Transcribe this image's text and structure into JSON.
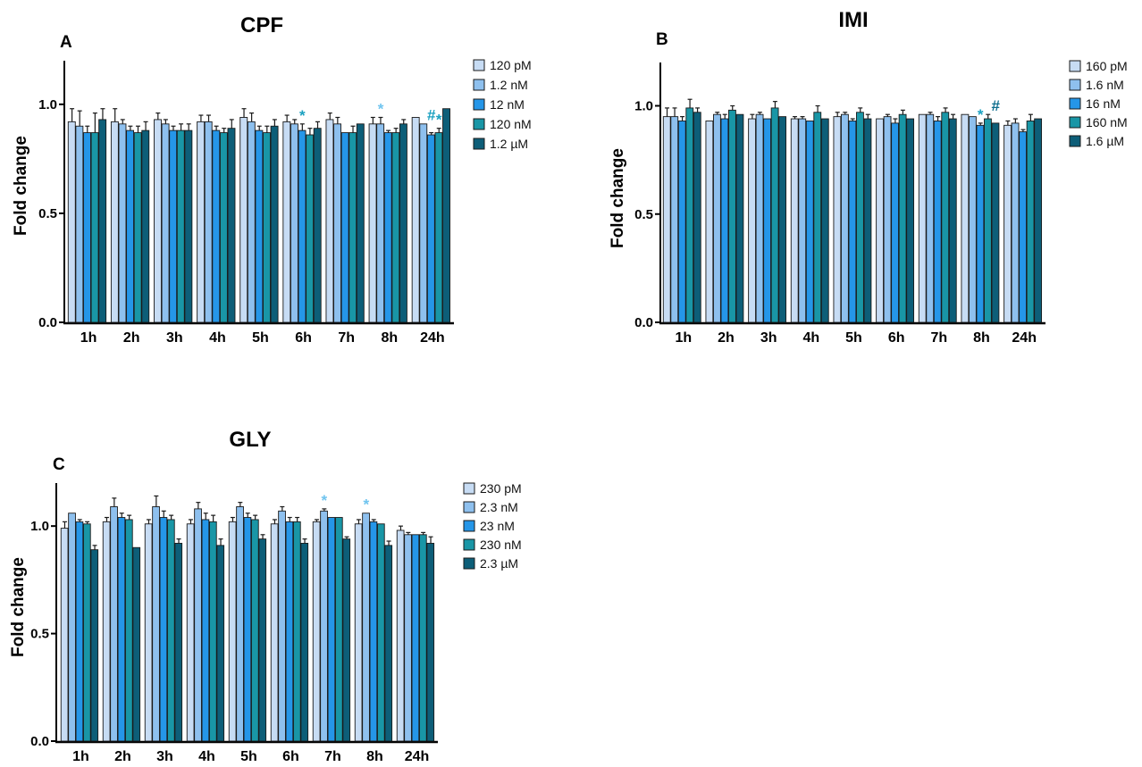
{
  "chart_data": [
    {
      "id": "A",
      "type": "bar",
      "title": "CPF",
      "panel_label": "A",
      "ylabel": "Fold change",
      "xlabel": "",
      "ylim": [
        0,
        1.2
      ],
      "yticks": [
        "0.0",
        "0.5",
        "1.0"
      ],
      "categories": [
        "1h",
        "2h",
        "3h",
        "4h",
        "5h",
        "6h",
        "7h",
        "8h",
        "24h"
      ],
      "series": [
        {
          "name": "120 pM",
          "values": [
            0.92,
            0.92,
            0.93,
            0.92,
            0.94,
            0.92,
            0.93,
            0.91,
            0.94
          ],
          "errors": [
            0.06,
            0.06,
            0.03,
            0.03,
            0.04,
            0.03,
            0.03,
            0.03,
            0.0
          ]
        },
        {
          "name": "1.2 nM",
          "values": [
            0.9,
            0.91,
            0.91,
            0.92,
            0.92,
            0.91,
            0.91,
            0.91,
            0.91
          ],
          "errors": [
            0.07,
            0.02,
            0.02,
            0.03,
            0.04,
            0.02,
            0.03,
            0.03,
            0.0
          ]
        },
        {
          "name": "12 nM",
          "values": [
            0.87,
            0.88,
            0.88,
            0.88,
            0.88,
            0.88,
            0.87,
            0.87,
            0.86
          ],
          "errors": [
            0.03,
            0.02,
            0.02,
            0.02,
            0.02,
            0.03,
            0.0,
            0.01,
            0.01
          ]
        },
        {
          "name": "120 nM",
          "values": [
            0.87,
            0.87,
            0.88,
            0.87,
            0.87,
            0.86,
            0.87,
            0.87,
            0.87
          ],
          "errors": [
            0.09,
            0.03,
            0.03,
            0.02,
            0.03,
            0.03,
            0.03,
            0.02,
            0.02
          ]
        },
        {
          "name": "1.2 µM",
          "values": [
            0.93,
            0.88,
            0.88,
            0.89,
            0.9,
            0.89,
            0.91,
            0.91,
            0.98
          ],
          "errors": [
            0.05,
            0.04,
            0.03,
            0.04,
            0.03,
            0.03,
            0.0,
            0.02,
            0.0
          ]
        }
      ],
      "annotations": [
        {
          "text": "*",
          "category": "6h",
          "series": 2
        },
        {
          "text": "*",
          "category": "8h",
          "series": 1
        },
        {
          "text": "#",
          "category": "24h",
          "series": 2
        },
        {
          "text": "*",
          "category": "24h",
          "series": 3
        }
      ]
    },
    {
      "id": "B",
      "type": "bar",
      "title": "IMI",
      "panel_label": "B",
      "ylabel": "Fold change",
      "xlabel": "",
      "ylim": [
        0,
        1.2
      ],
      "yticks": [
        "0.0",
        "0.5",
        "1.0"
      ],
      "categories": [
        "1h",
        "2h",
        "3h",
        "4h",
        "5h",
        "6h",
        "7h",
        "8h",
        "24h"
      ],
      "series": [
        {
          "name": "160 pM",
          "values": [
            0.95,
            0.93,
            0.94,
            0.94,
            0.95,
            0.94,
            0.96,
            0.96,
            0.91
          ],
          "errors": [
            0.04,
            0.0,
            0.02,
            0.01,
            0.02,
            0.0,
            0.0,
            0.0,
            0.02
          ]
        },
        {
          "name": "1.6 nM",
          "values": [
            0.95,
            0.96,
            0.96,
            0.94,
            0.96,
            0.95,
            0.96,
            0.95,
            0.92
          ],
          "errors": [
            0.04,
            0.01,
            0.01,
            0.01,
            0.01,
            0.01,
            0.01,
            0.0,
            0.02
          ]
        },
        {
          "name": "16 nM",
          "values": [
            0.93,
            0.94,
            0.94,
            0.93,
            0.93,
            0.92,
            0.93,
            0.91,
            0.88
          ],
          "errors": [
            0.02,
            0.02,
            0.0,
            0.0,
            0.01,
            0.02,
            0.02,
            0.01,
            0.01
          ]
        },
        {
          "name": "160 nM",
          "values": [
            0.99,
            0.98,
            0.99,
            0.97,
            0.97,
            0.96,
            0.97,
            0.94,
            0.93
          ],
          "errors": [
            0.04,
            0.02,
            0.03,
            0.03,
            0.02,
            0.02,
            0.02,
            0.02,
            0.03
          ]
        },
        {
          "name": "1.6 µM",
          "values": [
            0.97,
            0.96,
            0.95,
            0.94,
            0.94,
            0.94,
            0.94,
            0.92,
            0.94
          ],
          "errors": [
            0.02,
            0.0,
            0.0,
            0.0,
            0.02,
            0.0,
            0.02,
            0.0,
            0.0
          ]
        }
      ],
      "annotations": [
        {
          "text": "*",
          "category": "8h",
          "series": 2
        },
        {
          "text": "#",
          "category": "8h",
          "series": 4
        }
      ]
    },
    {
      "id": "C",
      "type": "bar",
      "title": "GLY",
      "panel_label": "C",
      "ylabel": "Fold change",
      "xlabel": "",
      "ylim": [
        0,
        1.2
      ],
      "yticks": [
        "0.0",
        "0.5",
        "1.0"
      ],
      "categories": [
        "1h",
        "2h",
        "3h",
        "4h",
        "5h",
        "6h",
        "7h",
        "8h",
        "24h"
      ],
      "series": [
        {
          "name": "230 pM",
          "values": [
            0.99,
            1.02,
            1.01,
            1.01,
            1.02,
            1.01,
            1.02,
            1.01,
            0.98
          ],
          "errors": [
            0.03,
            0.02,
            0.02,
            0.02,
            0.02,
            0.02,
            0.01,
            0.02,
            0.02
          ]
        },
        {
          "name": "2.3 nM",
          "values": [
            1.06,
            1.09,
            1.09,
            1.08,
            1.09,
            1.07,
            1.07,
            1.06,
            0.96
          ],
          "errors": [
            0.0,
            0.04,
            0.05,
            0.03,
            0.02,
            0.02,
            0.01,
            0.0,
            0.01
          ]
        },
        {
          "name": "23 nM",
          "values": [
            1.02,
            1.04,
            1.04,
            1.03,
            1.04,
            1.02,
            1.04,
            1.02,
            0.96
          ],
          "errors": [
            0.01,
            0.02,
            0.03,
            0.03,
            0.02,
            0.02,
            0.0,
            0.01,
            0.0
          ]
        },
        {
          "name": "230 nM",
          "values": [
            1.01,
            1.03,
            1.03,
            1.02,
            1.03,
            1.02,
            1.04,
            1.01,
            0.96
          ],
          "errors": [
            0.01,
            0.02,
            0.02,
            0.03,
            0.02,
            0.02,
            0.0,
            0.0,
            0.01
          ]
        },
        {
          "name": "2.3 µM",
          "values": [
            0.89,
            0.9,
            0.92,
            0.91,
            0.94,
            0.92,
            0.94,
            0.91,
            0.92
          ],
          "errors": [
            0.02,
            0.0,
            0.02,
            0.03,
            0.02,
            0.02,
            0.01,
            0.02,
            0.03
          ]
        }
      ],
      "annotations": [
        {
          "text": "*",
          "category": "7h",
          "series": 1
        },
        {
          "text": "*",
          "category": "8h",
          "series": 1
        }
      ]
    }
  ],
  "colors": {
    "series": [
      "#c7dcf4",
      "#8ec0ee",
      "#2596e8",
      "#1996a6",
      "#0d5e78"
    ],
    "annotation_light": "#6fc4ef",
    "annotation_teal": "#1aa0c0",
    "annotation_dark": "#0d6e8e",
    "axis": "#000000"
  }
}
